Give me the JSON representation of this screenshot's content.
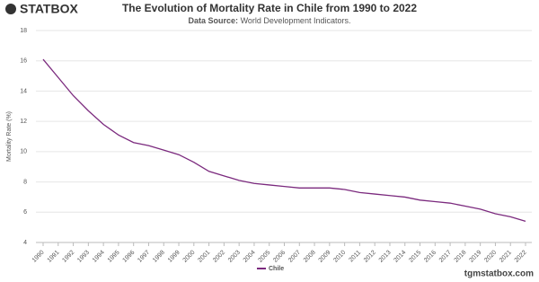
{
  "brand": "STATBOX",
  "footer": "tgmstatbox.com",
  "chart_data": {
    "type": "line",
    "title": "The Evolution of Mortality Rate in Chile from 1990 to 2022",
    "subtitle_label": "Data Source:",
    "subtitle": "World Development Indicators.",
    "y_label": "Mortality Rate (%)",
    "x": [
      1990,
      1991,
      1992,
      1993,
      1994,
      1995,
      1996,
      1997,
      1998,
      1999,
      2000,
      2001,
      2002,
      2003,
      2004,
      2005,
      2006,
      2007,
      2008,
      2009,
      2010,
      2011,
      2012,
      2013,
      2014,
      2015,
      2016,
      2017,
      2018,
      2019,
      2020,
      2021,
      2022
    ],
    "series": [
      {
        "name": "Chile",
        "color": "#7b2a7e",
        "values": [
          16.1,
          14.9,
          13.7,
          12.7,
          11.8,
          11.1,
          10.6,
          10.4,
          10.1,
          9.8,
          9.3,
          8.7,
          8.4,
          8.1,
          7.9,
          7.8,
          7.7,
          7.6,
          7.6,
          7.6,
          7.5,
          7.3,
          7.2,
          7.1,
          7.0,
          6.8,
          6.7,
          6.6,
          6.4,
          6.2,
          5.9,
          5.7,
          5.4
        ]
      }
    ],
    "xlim": [
      1990,
      2022
    ],
    "xticks": [
      1990,
      1991,
      1992,
      1993,
      1994,
      1995,
      1996,
      1997,
      1998,
      1999,
      2000,
      2001,
      2002,
      2003,
      2004,
      2005,
      2006,
      2007,
      2008,
      2009,
      2010,
      2011,
      2012,
      2013,
      2014,
      2015,
      2016,
      2017,
      2018,
      2019,
      2020,
      2021,
      2022
    ],
    "ylim": [
      4,
      18
    ],
    "yticks": [
      4,
      6,
      8,
      10,
      12,
      14,
      16,
      18
    ],
    "grid": true,
    "legend": "bottom"
  }
}
